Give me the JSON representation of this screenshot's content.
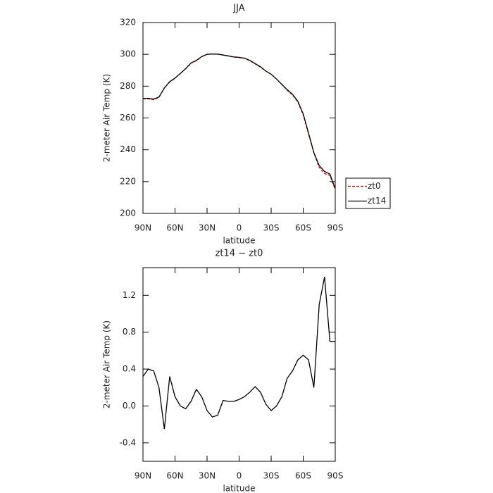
{
  "chart_data": [
    {
      "type": "line",
      "title": "JJA",
      "x_label": "latitude",
      "y_label": "2-meter Air Temp (K)",
      "x": [
        90,
        85,
        80,
        75,
        70,
        65,
        60,
        55,
        50,
        45,
        40,
        35,
        30,
        25,
        20,
        15,
        10,
        5,
        0,
        -5,
        -10,
        -15,
        -20,
        -25,
        -30,
        -35,
        -40,
        -45,
        -50,
        -55,
        -60,
        -65,
        -70,
        -75,
        -80,
        -85,
        -90
      ],
      "series": [
        {
          "name": "zt0",
          "color": "#cc0000",
          "dashed": true,
          "values": [
            272,
            272,
            271.5,
            273,
            279,
            282.5,
            285,
            288,
            291,
            294.5,
            296,
            298.5,
            300,
            300.3,
            300.2,
            299.5,
            299,
            298.3,
            298,
            297.5,
            296,
            294,
            292,
            289.5,
            287.5,
            284.5,
            281,
            277.5,
            274.5,
            270,
            262,
            250,
            238,
            229,
            225,
            224,
            215
          ]
        },
        {
          "name": "zt14",
          "color": "#000000",
          "dashed": false,
          "values": [
            272.3,
            272.4,
            271.9,
            273.2,
            278.8,
            282.8,
            285.1,
            288,
            291,
            294.6,
            296.2,
            298.6,
            300,
            300.2,
            300.1,
            299.6,
            299,
            298.4,
            298.1,
            297.6,
            296.2,
            294.2,
            292.2,
            289.5,
            287.5,
            284.5,
            281.1,
            277.8,
            274.9,
            270.5,
            262.6,
            250.5,
            238.2,
            230.1,
            226.4,
            224.7,
            215.7
          ]
        }
      ],
      "xlim": [
        90,
        -90
      ],
      "xticks": [
        {
          "value": 90,
          "label": "90N"
        },
        {
          "value": 60,
          "label": "60N"
        },
        {
          "value": 30,
          "label": "30N"
        },
        0,
        {
          "value": -30,
          "label": "30S"
        },
        {
          "value": -60,
          "label": "60S"
        },
        {
          "value": -90,
          "label": "90S"
        }
      ],
      "ylim": [
        200,
        320
      ],
      "yticks": [
        200,
        220,
        240,
        260,
        280,
        300,
        320
      ],
      "legend": "right"
    },
    {
      "type": "line",
      "title": "zt14 − zt0",
      "x_label": "latitude",
      "y_label": "2-meter Air Temp (K)",
      "x": [
        90,
        85,
        80,
        75,
        70,
        65,
        60,
        55,
        50,
        45,
        40,
        35,
        30,
        25,
        20,
        15,
        10,
        5,
        0,
        -5,
        -10,
        -15,
        -20,
        -25,
        -30,
        -35,
        -40,
        -45,
        -50,
        -55,
        -60,
        -65,
        -70,
        -75,
        -80,
        -85,
        -90
      ],
      "values": [
        0.32,
        0.4,
        0.38,
        0.2,
        -0.25,
        0.32,
        0.1,
        0.0,
        -0.03,
        0.05,
        0.18,
        0.1,
        -0.05,
        -0.12,
        -0.1,
        0.06,
        0.05,
        0.05,
        0.07,
        0.1,
        0.15,
        0.21,
        0.15,
        0.02,
        -0.05,
        0.0,
        0.1,
        0.3,
        0.38,
        0.5,
        0.55,
        0.5,
        0.2,
        1.1,
        1.4,
        0.7,
        0.7
      ],
      "color": "#000000",
      "xlim": [
        90,
        -90
      ],
      "xticks": [
        {
          "value": 90,
          "label": "90N"
        },
        {
          "value": 60,
          "label": "60N"
        },
        {
          "value": 30,
          "label": "30N"
        },
        0,
        {
          "value": -30,
          "label": "30S"
        },
        {
          "value": -60,
          "label": "60S"
        },
        {
          "value": -90,
          "label": "90S"
        }
      ],
      "ylim": [
        -0.6,
        1.5
      ],
      "yticks": [
        -0.4,
        {
          "value": 0,
          "label": "0.0"
        },
        0.4,
        0.8,
        1.2
      ]
    }
  ]
}
